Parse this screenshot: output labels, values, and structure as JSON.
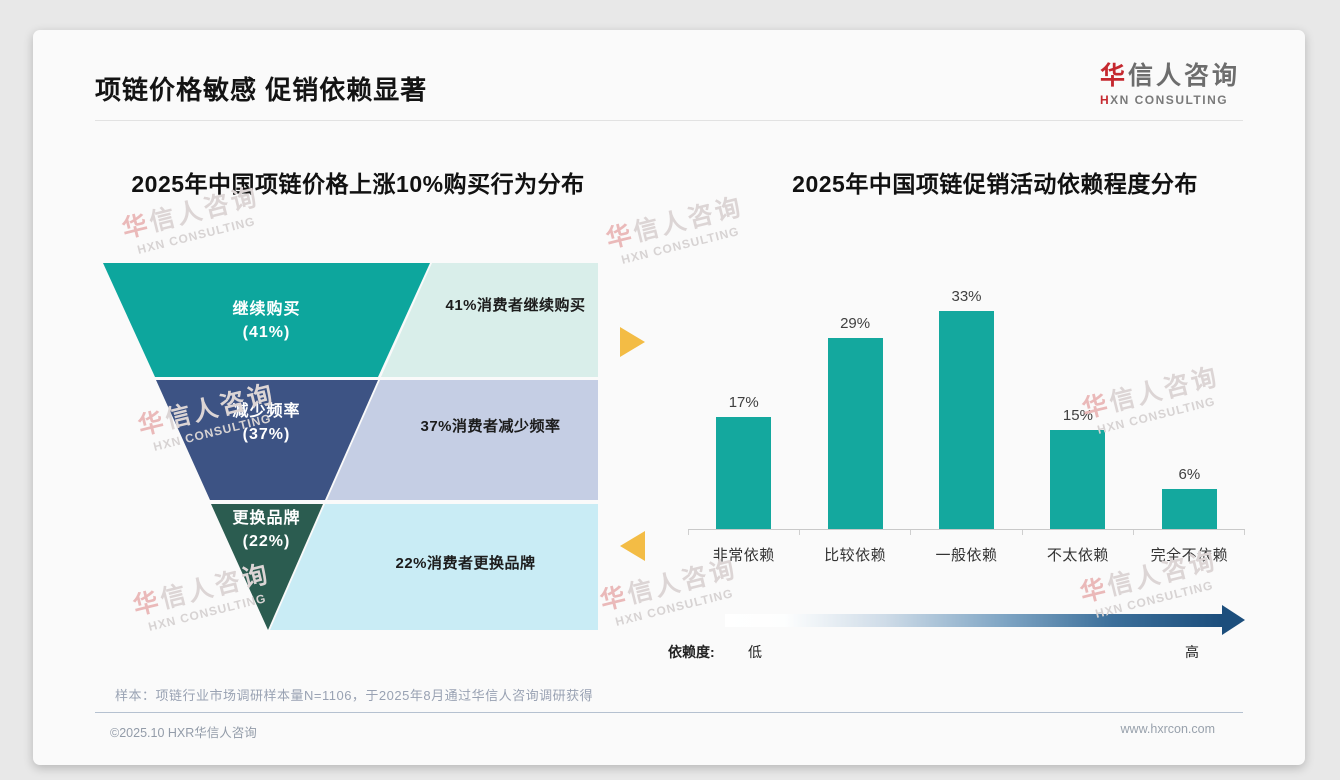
{
  "header": {
    "title": "项链价格敏感 促销依赖显著"
  },
  "logo": {
    "cn_first": "华",
    "cn_rest": "信人咨询",
    "en_first": "H",
    "en_rest": "XN CONSULTING",
    "brand_red": "#c5282f"
  },
  "watermark": {
    "line1_first": "华",
    "line1_rest": "信人咨询",
    "line2": "HXN CONSULTING"
  },
  "chart_data": [
    {
      "type": "funnel",
      "title": "2025年中国项链价格上涨10%购买行为分布",
      "categories": [
        "继续购买",
        "减少频率",
        "更换品牌"
      ],
      "values": [
        41,
        37,
        22
      ],
      "stage_value_labels": [
        "(41%)",
        "(37%)",
        "(22%)"
      ],
      "annotations": [
        "41%消费者继续购买",
        "37%消费者减少频率",
        "22%消费者更换品牌"
      ],
      "stage_colors": [
        "#0da69d",
        "#3d5384",
        "#2b5c50"
      ],
      "panel_colors": [
        "#d9eeea",
        "#c5cee4",
        "#c9ecf5"
      ]
    },
    {
      "type": "bar",
      "title": "2025年中国项链促销活动依赖程度分布",
      "categories": [
        "非常依赖",
        "比较依赖",
        "一般依赖",
        "不太依赖",
        "完全不依赖"
      ],
      "values": [
        17,
        29,
        33,
        15,
        6
      ],
      "data_labels": [
        "17%",
        "29%",
        "33%",
        "15%",
        "6%"
      ],
      "bar_color": "#14a89e",
      "ylim": [
        0,
        35
      ],
      "grid": false,
      "legend_arrow": {
        "label": "依赖度:",
        "low": "低",
        "high": "高",
        "gradient_end": "#1c4e7c"
      }
    }
  ],
  "side_arrow_color": "#f3bc45",
  "footer": {
    "sample_note": "样本：项链行业市场调研样本量N=1106，于2025年8月通过华信人咨询调研获得",
    "copyright": "©2025.10 HXR华信人咨询",
    "website": "www.hxrcon.com"
  }
}
